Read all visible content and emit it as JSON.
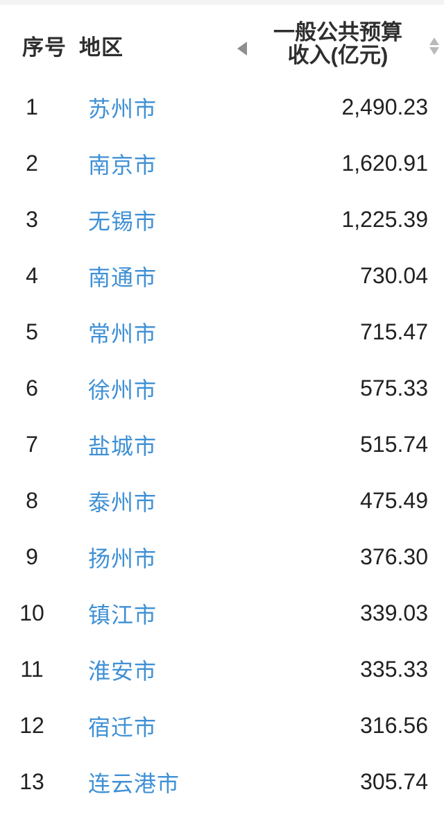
{
  "colors": {
    "accent_blue": "#3f90d5",
    "text_dark": "#212121",
    "header_text": "#2e2e2e",
    "freeze_handle_gray": "#8f8f8f",
    "sort_arrow_gray": "#b9b9b9",
    "top_strip": "#f3f3f4",
    "background": "#ffffff"
  },
  "icons": {
    "freeze_handle": "left-triangle-icon",
    "sort": "up-down-triangle-icon"
  },
  "table": {
    "header": {
      "index_label": "序号",
      "region_label": "地区",
      "value_label_line1": "一般公共预算",
      "value_label_line2": "收入(亿元)"
    },
    "rows": [
      {
        "index": "1",
        "region": "苏州市",
        "value": "2,490.23"
      },
      {
        "index": "2",
        "region": "南京市",
        "value": "1,620.91"
      },
      {
        "index": "3",
        "region": "无锡市",
        "value": "1,225.39"
      },
      {
        "index": "4",
        "region": "南通市",
        "value": "730.04"
      },
      {
        "index": "5",
        "region": "常州市",
        "value": "715.47"
      },
      {
        "index": "6",
        "region": "徐州市",
        "value": "575.33"
      },
      {
        "index": "7",
        "region": "盐城市",
        "value": "515.74"
      },
      {
        "index": "8",
        "region": "泰州市",
        "value": "475.49"
      },
      {
        "index": "9",
        "region": "扬州市",
        "value": "376.30"
      },
      {
        "index": "10",
        "region": "镇江市",
        "value": "339.03"
      },
      {
        "index": "11",
        "region": "淮安市",
        "value": "335.33"
      },
      {
        "index": "12",
        "region": "宿迁市",
        "value": "316.56"
      },
      {
        "index": "13",
        "region": "连云港市",
        "value": "305.74"
      }
    ]
  }
}
